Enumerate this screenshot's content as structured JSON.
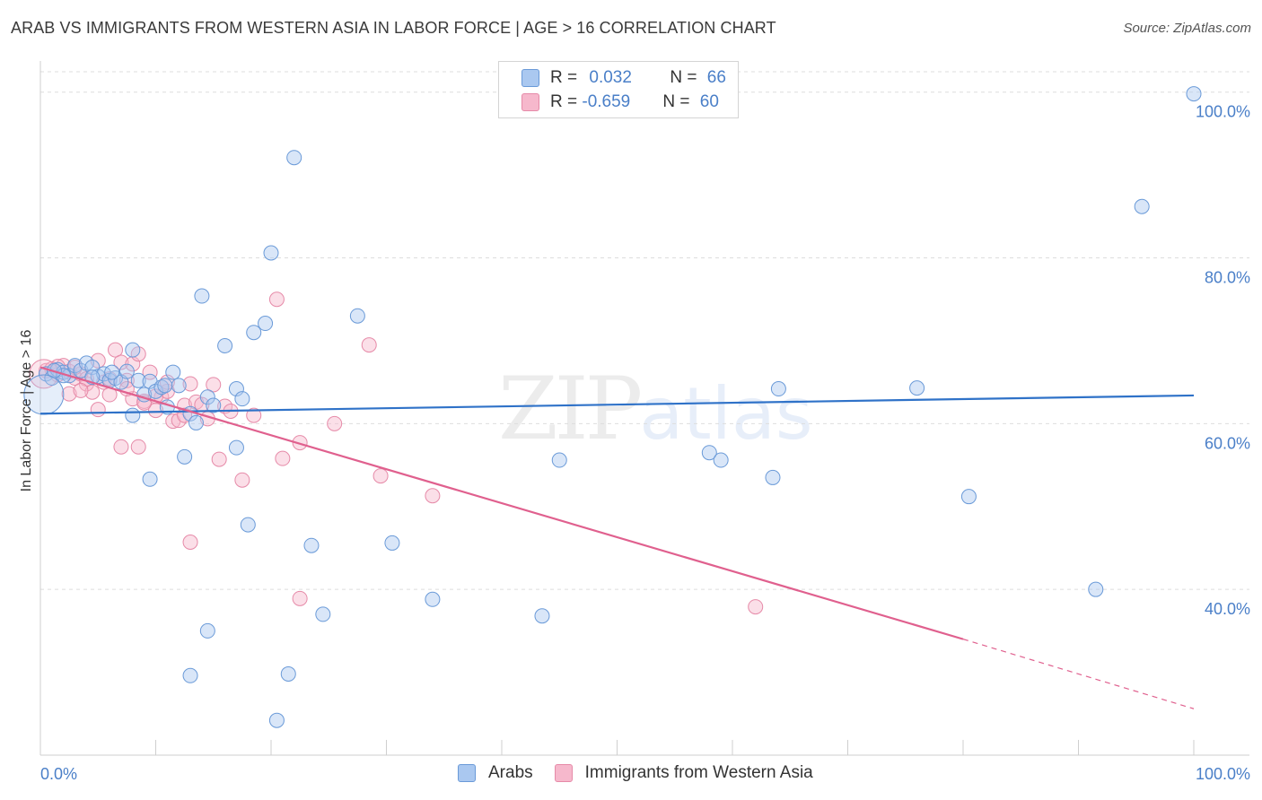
{
  "title": "ARAB VS IMMIGRANTS FROM WESTERN ASIA IN LABOR FORCE | AGE > 16 CORRELATION CHART",
  "source": "Source: ZipAtlas.com",
  "watermark": {
    "zip": "ZIP",
    "atlas": "atlas"
  },
  "legend": {
    "arabs": {
      "r_label": "R = ",
      "r_value": "0.032",
      "n_label": "N = ",
      "n_value": "66"
    },
    "immigrants": {
      "r_label": "R = ",
      "r_value": "-0.659",
      "n_label": "N = ",
      "n_value": "60"
    }
  },
  "bottom_legend": {
    "arabs": "Arabs",
    "immigrants": "Immigrants from Western Asia"
  },
  "colors": {
    "arabs_fill": "#aac8f0",
    "arabs_stroke": "#6a9ad8",
    "arabs_line": "#2f72c8",
    "imm_fill": "#f6b8cc",
    "imm_stroke": "#e68aa8",
    "imm_line": "#e0608e",
    "tick": "#4a7fc8",
    "grid": "#dddddd"
  },
  "chart_data": {
    "type": "scatter",
    "xlabel": "",
    "ylabel": "In Labor Force | Age > 16",
    "xlim": [
      0,
      100
    ],
    "ylim": [
      20,
      103
    ],
    "x_tick_labels": [
      "0.0%",
      "100.0%"
    ],
    "y_ticks": [
      40,
      60,
      80,
      100
    ],
    "y_tick_labels": [
      "40.0%",
      "60.0%",
      "80.0%",
      "100.0%"
    ],
    "series": [
      {
        "name": "Arabs",
        "trend": {
          "x": [
            0,
            100
          ],
          "y": [
            61.2,
            63.4
          ],
          "dashed_from": null
        },
        "points": [
          [
            0.5,
            66.0
          ],
          [
            1.0,
            65.5
          ],
          [
            1.5,
            66.5
          ],
          [
            2.0,
            66.2
          ],
          [
            2.5,
            65.8
          ],
          [
            3.0,
            67.0
          ],
          [
            3.5,
            66.4
          ],
          [
            4.0,
            67.3
          ],
          [
            4.5,
            66.8
          ],
          [
            5.0,
            65.7
          ],
          [
            5.5,
            66.0
          ],
          [
            6.0,
            65.2
          ],
          [
            6.5,
            65.5
          ],
          [
            7.0,
            65.0
          ],
          [
            7.5,
            66.3
          ],
          [
            8.0,
            68.9
          ],
          [
            8.5,
            65.2
          ],
          [
            9.0,
            63.5
          ],
          [
            9.5,
            65.1
          ],
          [
            10.0,
            63.9
          ],
          [
            10.5,
            64.4
          ],
          [
            11.0,
            62.0
          ],
          [
            11.5,
            66.2
          ],
          [
            12.0,
            64.6
          ],
          [
            13.0,
            61.2
          ],
          [
            13.5,
            60.1
          ],
          [
            14.5,
            63.2
          ],
          [
            15.0,
            62.2
          ],
          [
            16.0,
            69.4
          ],
          [
            17.0,
            64.2
          ],
          [
            17.5,
            63.0
          ],
          [
            18.5,
            71.0
          ],
          [
            19.5,
            72.1
          ],
          [
            20.0,
            80.6
          ],
          [
            22.0,
            92.1
          ],
          [
            14.0,
            75.4
          ],
          [
            27.5,
            73.0
          ],
          [
            9.5,
            53.3
          ],
          [
            12.5,
            56.0
          ],
          [
            17.0,
            57.1
          ],
          [
            18.0,
            47.8
          ],
          [
            23.5,
            45.3
          ],
          [
            30.5,
            45.6
          ],
          [
            34.0,
            38.8
          ],
          [
            43.5,
            36.8
          ],
          [
            24.5,
            37.0
          ],
          [
            14.5,
            35.0
          ],
          [
            13.0,
            29.6
          ],
          [
            21.5,
            29.8
          ],
          [
            20.5,
            24.2
          ],
          [
            45.0,
            55.6
          ],
          [
            58.0,
            56.5
          ],
          [
            59.0,
            55.6
          ],
          [
            63.5,
            53.5
          ],
          [
            64.0,
            64.2
          ],
          [
            76.0,
            64.3
          ],
          [
            80.5,
            51.2
          ],
          [
            91.5,
            40.0
          ],
          [
            95.5,
            86.2
          ],
          [
            100.0,
            99.8
          ],
          [
            2.0,
            65.8
          ],
          [
            8.0,
            61.0
          ],
          [
            4.5,
            65.6
          ],
          [
            6.2,
            66.2
          ],
          [
            10.8,
            64.6
          ],
          [
            1.2,
            66.4
          ]
        ]
      },
      {
        "name": "Immigrants from Western Asia",
        "trend": {
          "x": [
            0,
            80,
            100
          ],
          "y": [
            66.8,
            34.0,
            25.6
          ],
          "dashed_from": 80
        },
        "points": [
          [
            0.5,
            66.4
          ],
          [
            1.0,
            66.6
          ],
          [
            1.5,
            65.9
          ],
          [
            2.0,
            67.0
          ],
          [
            2.5,
            66.3
          ],
          [
            3.0,
            65.5
          ],
          [
            3.5,
            66.0
          ],
          [
            4.0,
            64.8
          ],
          [
            4.5,
            63.8
          ],
          [
            5.0,
            67.6
          ],
          [
            5.5,
            65.0
          ],
          [
            6.0,
            63.5
          ],
          [
            6.5,
            68.9
          ],
          [
            7.0,
            67.4
          ],
          [
            7.5,
            65.2
          ],
          [
            8.0,
            67.2
          ],
          [
            8.5,
            68.4
          ],
          [
            9.0,
            62.7
          ],
          [
            9.5,
            66.2
          ],
          [
            10.0,
            61.6
          ],
          [
            10.5,
            63.2
          ],
          [
            11.0,
            63.9
          ],
          [
            11.5,
            60.3
          ],
          [
            12.0,
            60.4
          ],
          [
            12.5,
            62.2
          ],
          [
            13.0,
            64.8
          ],
          [
            13.5,
            62.6
          ],
          [
            14.0,
            62.3
          ],
          [
            15.0,
            64.7
          ],
          [
            15.5,
            55.7
          ],
          [
            16.0,
            62.1
          ],
          [
            17.5,
            53.2
          ],
          [
            18.5,
            61.0
          ],
          [
            20.5,
            75.0
          ],
          [
            21.0,
            55.8
          ],
          [
            22.5,
            57.7
          ],
          [
            25.5,
            60.0
          ],
          [
            28.5,
            69.5
          ],
          [
            29.5,
            53.7
          ],
          [
            34.0,
            51.3
          ],
          [
            22.5,
            38.9
          ],
          [
            13.0,
            45.7
          ],
          [
            7.0,
            57.2
          ],
          [
            8.5,
            57.2
          ],
          [
            62.0,
            37.9
          ],
          [
            5.0,
            61.7
          ],
          [
            3.0,
            66.8
          ],
          [
            4.0,
            65.4
          ],
          [
            6.0,
            65.4
          ],
          [
            2.5,
            63.6
          ],
          [
            8.0,
            63.0
          ],
          [
            9.0,
            62.5
          ],
          [
            10.0,
            63.3
          ],
          [
            11.0,
            65.0
          ],
          [
            1.5,
            66.9
          ],
          [
            12.5,
            61.0
          ],
          [
            7.5,
            64.2
          ],
          [
            14.5,
            60.6
          ],
          [
            16.5,
            61.5
          ],
          [
            3.5,
            64.0
          ]
        ]
      }
    ]
  }
}
